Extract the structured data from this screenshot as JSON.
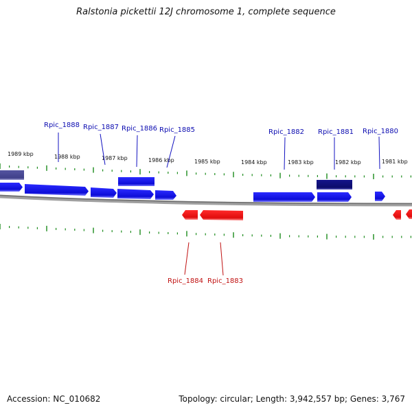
{
  "title": "Ralstonia pickettii 12J chromosome 1, complete sequence",
  "footer": {
    "accession": "Accession: NC_010682",
    "summary": "Topology: circular; Length: 3,942,557 bp; Genes: 3,767"
  },
  "colors": {
    "forward_gene": "#1010e8",
    "forward_gene_highlight": "#10107a",
    "forward_gene_faded": "#4a4a90",
    "reverse_gene": "#e81010",
    "backbone": "#808080",
    "tick": "#1a8a1a",
    "forward_label": "#0a0ab0",
    "reverse_label": "#c01010",
    "scale_label": "#111111"
  },
  "scale": {
    "labels": [
      "1989 kbp",
      "1988 kbp",
      "1987 kbp",
      "1986 kbp",
      "1985 kbp",
      "1984 kbp",
      "1983 kbp",
      "1982 kbp",
      "1981 kbp"
    ]
  },
  "genes": {
    "forward_labels": [
      "Rpic_1888",
      "Rpic_1887",
      "Rpic_1886",
      "Rpic_1885",
      "Rpic_1882",
      "Rpic_1881",
      "Rpic_1880"
    ],
    "reverse_labels": [
      "Rpic_1884",
      "Rpic_1883"
    ]
  }
}
